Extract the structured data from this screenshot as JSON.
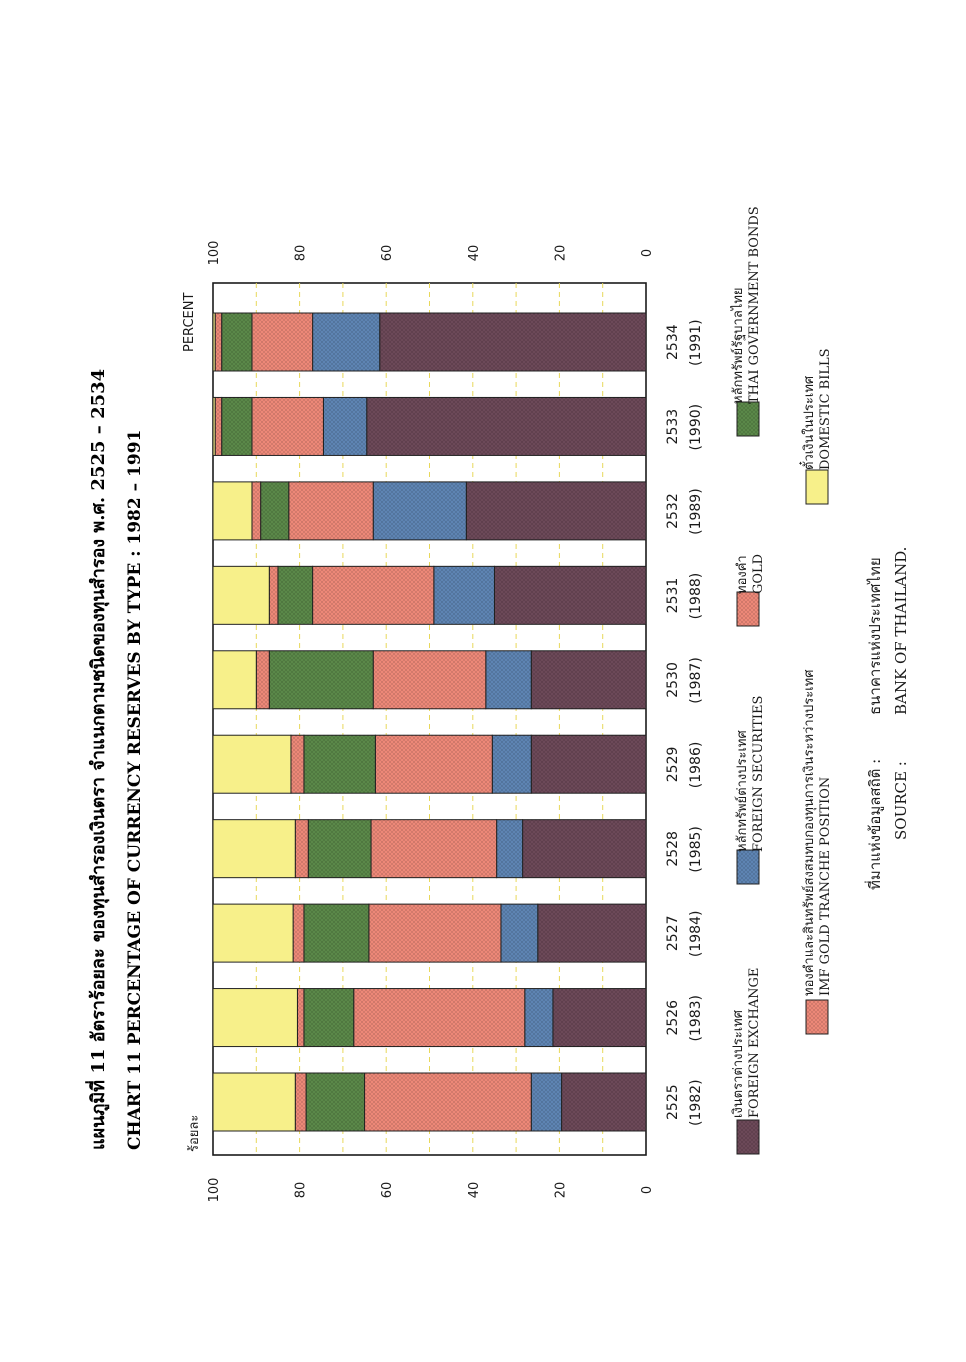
{
  "title_th": "แผนภูมิที่  11  อัตราร้อยละ ของทุนสำรองเงินตรา จำแนกตามชนิดของทุนสำรอง  พ.ศ. 2525 – 2534",
  "title_en": "CHART     11  PERCENTAGE OF CURRENCY RESERVES BY TYPE  :  1982 – 1991",
  "source": {
    "label_th": "ที่มาแห่งข้อมูลสถิติ  :",
    "value_th": "ธนาคารแห่งประเทศไทย",
    "label_en": "SOURCE   :",
    "value_en": "BANK OF THAILAND."
  },
  "colors": {
    "foreign_exchange": "#6e4a5a",
    "foreign_securities": "#5f86b5",
    "imf": "#f08a7a",
    "gold": "#f08a7a",
    "thai_bonds": "#5c8a4a",
    "domestic_bills": "#f7f08a"
  },
  "chart_data": {
    "type": "bar",
    "stacked": true,
    "orientation": "vertical (page rotated 90°)",
    "title": "PERCENTAGE OF CURRENCY RESERVES BY TYPE : 1982 – 1991",
    "ylabel_th": "ร้อยละ",
    "ylabel_en": "PERCENT",
    "ylim": [
      0,
      100
    ],
    "yticks": [
      "0",
      "20",
      "40",
      "60",
      "80",
      "100"
    ],
    "grid": true,
    "categories": [
      {
        "be": "2525",
        "ce": "(1982)"
      },
      {
        "be": "2526",
        "ce": "(1983)"
      },
      {
        "be": "2527",
        "ce": "(1984)"
      },
      {
        "be": "2528",
        "ce": "(1985)"
      },
      {
        "be": "2529",
        "ce": "(1986)"
      },
      {
        "be": "2530",
        "ce": "(1987)"
      },
      {
        "be": "2531",
        "ce": "(1988)"
      },
      {
        "be": "2532",
        "ce": "(1989)"
      },
      {
        "be": "2533",
        "ce": "(1990)"
      },
      {
        "be": "2534",
        "ce": "(1991)"
      }
    ],
    "series": [
      {
        "key": "foreign_exchange",
        "name_th": "เงินตราต่างประเทศ",
        "name_en": "FOREIGN EXCHANGE",
        "values": [
          19.5,
          21.5,
          25.0,
          28.5,
          26.5,
          26.5,
          35.0,
          41.5,
          64.5,
          61.5
        ]
      },
      {
        "key": "foreign_securities",
        "name_th": "หลักทรัพย์ต่างประเทศ",
        "name_en": "FOREIGN SECURITIES",
        "values": [
          7.0,
          6.5,
          8.5,
          6.0,
          9.0,
          10.5,
          14.0,
          21.5,
          10.0,
          15.5
        ]
      },
      {
        "key": "imf",
        "name_th": "ทองคำและสินทรัพย์สงสมทบกองทุนการเงินระหว่างประเทศ",
        "name_en": "IMF GOLD TRANCHE POSITION",
        "values": [
          38.5,
          39.5,
          30.5,
          29.0,
          27.0,
          26.0,
          28.0,
          19.5,
          16.5,
          14.0
        ]
      },
      {
        "key": "gold",
        "name_th": "ทองคำ",
        "name_en": "GOLD",
        "values": [
          0,
          0,
          0,
          0,
          0,
          0,
          0,
          0,
          0,
          0
        ]
      },
      {
        "key": "thai_bonds",
        "name_th": "หลักทรัพย์รัฐบาลไทย",
        "name_en": "THAI GOVERNMENT BONDS",
        "values": [
          13.5,
          11.5,
          15.0,
          14.5,
          16.5,
          24.0,
          8.0,
          6.5,
          7.0,
          7.0
        ]
      },
      {
        "key": "red_band",
        "name_th": "",
        "name_en": "",
        "values": [
          2.5,
          1.5,
          2.5,
          3.0,
          3.0,
          3.0,
          2.0,
          2.0,
          1.5,
          1.5
        ]
      },
      {
        "key": "domestic_bills",
        "name_th": "ตั๋วเงินในประเทศ",
        "name_en": "DOMESTIC BILLS",
        "values": [
          19.0,
          19.5,
          18.5,
          19.0,
          18.0,
          10.0,
          13.0,
          9.0,
          0.5,
          0.5
        ]
      }
    ]
  }
}
